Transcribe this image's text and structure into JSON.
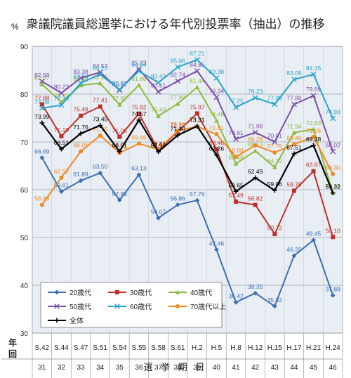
{
  "chart_data": {
    "type": "line",
    "title": "衆議院議員総選挙における年代別投票率（抽出）の推移",
    "ylabel": "%",
    "xlabel": "選 挙 期 日",
    "row_label_era": "年",
    "row_label_round": "回",
    "ylim": [
      30,
      90
    ],
    "yticks": [
      30,
      40,
      50,
      60,
      70,
      80,
      90
    ],
    "grid": true,
    "legend_position": "bottom-left",
    "categories": [
      "S.42",
      "S.44",
      "S.47",
      "S.51",
      "S.54",
      "S.55",
      "S.58",
      "S.61",
      "H.2",
      "H.5",
      "H.8",
      "H.12",
      "H.15",
      "H.17",
      "H.21",
      "H.24"
    ],
    "rounds": [
      "31",
      "32",
      "33",
      "34",
      "35",
      "36",
      "37",
      "38",
      "39",
      "40",
      "41",
      "42",
      "43",
      "44",
      "45",
      "46"
    ],
    "series": [
      {
        "name": "20歳代",
        "color": "#3a6fb0",
        "marker": "diamond",
        "values": [
          66.69,
          59.61,
          61.89,
          63.5,
          57.83,
          63.13,
          54.07,
          56.86,
          57.76,
          47.46,
          36.42,
          38.35,
          35.62,
          46.2,
          49.45,
          37.89
        ]
      },
      {
        "name": "30歳代",
        "color": "#c0302b",
        "marker": "square",
        "values": [
          77.88,
          71.19,
          75.48,
          77.41,
          71.06,
          75.92,
          68.25,
          72.15,
          75.97,
          68.46,
          57.49,
          56.82,
          50.72,
          59.79,
          63.87,
          50.1
        ]
      },
      {
        "name": "40歳代",
        "color": "#8dbb3c",
        "marker": "triangle",
        "values": [
          82.07,
          78.33,
          81.84,
          82.29,
          77.82,
          81.88,
          75.43,
          77.99,
          81.44,
          74.48,
          65.46,
          68.13,
          64.72,
          71.94,
          72.63,
          59.38
        ]
      },
      {
        "name": "50歳代",
        "color": "#7c4ea6",
        "marker": "x",
        "values": [
          82.68,
          80.23,
          83.38,
          84.57,
          80.82,
          85.23,
          80.51,
          82.74,
          84.85,
          79.34,
          70.61,
          71.98,
          70.01,
          77.86,
          79.69,
          68.02
        ]
      },
      {
        "name": "60歳代",
        "color": "#2aa3c9",
        "marker": "x",
        "values": [
          77.08,
          77.7,
          82.34,
          84.13,
          80.97,
          84.84,
          82.43,
          85.66,
          87.21,
          83.38,
          77.25,
          79.23,
          77.89,
          83.08,
          84.15,
          74.93
        ]
      },
      {
        "name": "70歳代以上",
        "color": "#ef8a22",
        "marker": "circle",
        "values": [
          56.83,
          62.52,
          68.01,
          71.35,
          67.72,
          69.66,
          68.41,
          72.36,
          73.21,
          71.61,
          66.88,
          69.28,
          67.78,
          69.48,
          71.06,
          63.3
        ]
      },
      {
        "name": "全体",
        "color": "#000000",
        "marker": "plus",
        "values": [
          73.99,
          68.51,
          71.76,
          73.45,
          68.01,
          74.57,
          67.94,
          71.4,
          73.31,
          67.26,
          59.65,
          62.49,
          59.86,
          67.51,
          69.28,
          59.32
        ]
      }
    ]
  }
}
